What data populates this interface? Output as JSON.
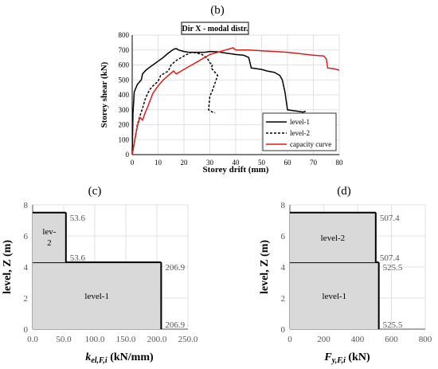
{
  "chart_data": [
    {
      "panel_label": "(b)",
      "type": "line",
      "title": "Dir X - modal distr.",
      "xlabel": "Storey drift (mm)",
      "ylabel": "Storey shear (kN)",
      "xlim": [
        0,
        80
      ],
      "ylim": [
        0,
        800
      ],
      "xticks": [
        "0",
        "10",
        "20",
        "30",
        "40",
        "50",
        "60",
        "70",
        "80"
      ],
      "yticks": [
        "0",
        "100",
        "200",
        "300",
        "400",
        "500",
        "600",
        "700",
        "800"
      ],
      "grid": true,
      "legend_position": "bottom-right",
      "series": [
        {
          "name": "level-1",
          "color": "#000000",
          "dash": "solid",
          "points": [
            [
              0,
              0
            ],
            [
              0.3,
              280
            ],
            [
              0.8,
              420
            ],
            [
              2,
              470
            ],
            [
              3.5,
              500
            ],
            [
              4,
              540
            ],
            [
              5,
              560
            ],
            [
              6,
              575
            ],
            [
              8,
              600
            ],
            [
              10,
              625
            ],
            [
              12,
              650
            ],
            [
              14,
              680
            ],
            [
              16,
              705
            ],
            [
              17,
              710
            ],
            [
              18,
              700
            ],
            [
              20,
              690
            ],
            [
              22,
              685
            ],
            [
              25,
              685
            ],
            [
              28,
              685
            ],
            [
              30,
              690
            ],
            [
              33,
              688
            ],
            [
              36,
              680
            ],
            [
              40,
              670
            ],
            [
              43,
              665
            ],
            [
              45,
              650
            ],
            [
              46,
              580
            ],
            [
              50,
              570
            ],
            [
              52,
              560
            ],
            [
              55,
              550
            ],
            [
              57,
              530
            ],
            [
              58,
              500
            ],
            [
              59,
              420
            ],
            [
              60,
              300
            ],
            [
              62,
              295
            ],
            [
              64,
              290
            ],
            [
              66,
              285
            ],
            [
              67,
              290
            ]
          ]
        },
        {
          "name": "level-2",
          "color": "#000000",
          "dash": "dashed",
          "points": [
            [
              0,
              0
            ],
            [
              1,
              100
            ],
            [
              2,
              200
            ],
            [
              3,
              260
            ],
            [
              4,
              310
            ],
            [
              5,
              370
            ],
            [
              6,
              410
            ],
            [
              7,
              440
            ],
            [
              8,
              460
            ],
            [
              10,
              490
            ],
            [
              11,
              530
            ],
            [
              13,
              550
            ],
            [
              14,
              560
            ],
            [
              15,
              600
            ],
            [
              17,
              630
            ],
            [
              19,
              650
            ],
            [
              21,
              670
            ],
            [
              23,
              685
            ],
            [
              25,
              680
            ],
            [
              27,
              670
            ],
            [
              29,
              645
            ],
            [
              30,
              615
            ],
            [
              31,
              600
            ],
            [
              30.5,
              580
            ],
            [
              32,
              550
            ],
            [
              33,
              530
            ],
            [
              31,
              430
            ],
            [
              30,
              390
            ],
            [
              29.5,
              300
            ],
            [
              31,
              285
            ],
            [
              32,
              280
            ]
          ]
        },
        {
          "name": "capacity curve",
          "color": "#e31a1c",
          "dash": "solid",
          "points": [
            [
              0,
              0
            ],
            [
              1,
              100
            ],
            [
              2,
              190
            ],
            [
              3,
              250
            ],
            [
              4,
              230
            ],
            [
              5,
              280
            ],
            [
              6,
              320
            ],
            [
              8,
              410
            ],
            [
              10,
              460
            ],
            [
              12,
              500
            ],
            [
              14,
              530
            ],
            [
              16,
              560
            ],
            [
              17,
              540
            ],
            [
              18,
              550
            ],
            [
              20,
              570
            ],
            [
              22,
              590
            ],
            [
              25,
              620
            ],
            [
              28,
              650
            ],
            [
              30,
              670
            ],
            [
              33,
              685
            ],
            [
              36,
              700
            ],
            [
              39,
              715
            ],
            [
              40,
              700
            ],
            [
              45,
              700
            ],
            [
              50,
              695
            ],
            [
              55,
              690
            ],
            [
              60,
              685
            ],
            [
              65,
              675
            ],
            [
              70,
              665
            ],
            [
              74,
              660
            ],
            [
              75,
              640
            ],
            [
              75.5,
              580
            ],
            [
              78,
              575
            ],
            [
              80,
              565
            ]
          ]
        }
      ]
    },
    {
      "panel_label": "(c)",
      "type": "bar",
      "orientation": "horizontal",
      "xlabel": "k_el,F,i (kN/mm)",
      "xlabel_main": "k",
      "xlabel_sub": "el,F,i",
      "xlabel_unit": " (kN/mm)",
      "ylabel": "level, Z (m)",
      "xlim": [
        0,
        250
      ],
      "ylim": [
        0,
        8
      ],
      "xticks": [
        "0.0",
        "50.0",
        "100.0",
        "150.0",
        "200.0",
        "250.0"
      ],
      "yticks": [
        "0",
        "2",
        "4",
        "6",
        "8"
      ],
      "bars": [
        {
          "label": "level-1",
          "z_bottom": 0,
          "z_top": 4.3,
          "value": 206.9,
          "value_label_top": "206.9",
          "value_label_bottom": "206.9"
        },
        {
          "label_lines": [
            "lev-",
            "2"
          ],
          "z_bottom": 4.3,
          "z_top": 7.5,
          "value": 53.6,
          "value_label_top": "53.6",
          "value_label_bottom": "53.6"
        }
      ]
    },
    {
      "panel_label": "(d)",
      "type": "bar",
      "orientation": "horizontal",
      "xlabel": "F_y,F,i (kN)",
      "xlabel_main": "F",
      "xlabel_sub": "y,F,i",
      "xlabel_unit": " (kN)",
      "ylabel": "level, Z (m)",
      "xlim": [
        0,
        800
      ],
      "ylim": [
        0,
        8
      ],
      "xticks": [
        "0",
        "200",
        "400",
        "600",
        "800"
      ],
      "yticks": [
        "0",
        "2",
        "4",
        "6",
        "8"
      ],
      "bars": [
        {
          "label": "level-1",
          "z_bottom": 0,
          "z_top": 4.3,
          "value": 525.5,
          "value_label_top": "525.5",
          "value_label_bottom": "525.5"
        },
        {
          "label": "level-2",
          "z_bottom": 4.3,
          "z_top": 7.5,
          "value": 507.4,
          "value_label_top": "507.4",
          "value_label_bottom": "507.4"
        }
      ]
    }
  ]
}
